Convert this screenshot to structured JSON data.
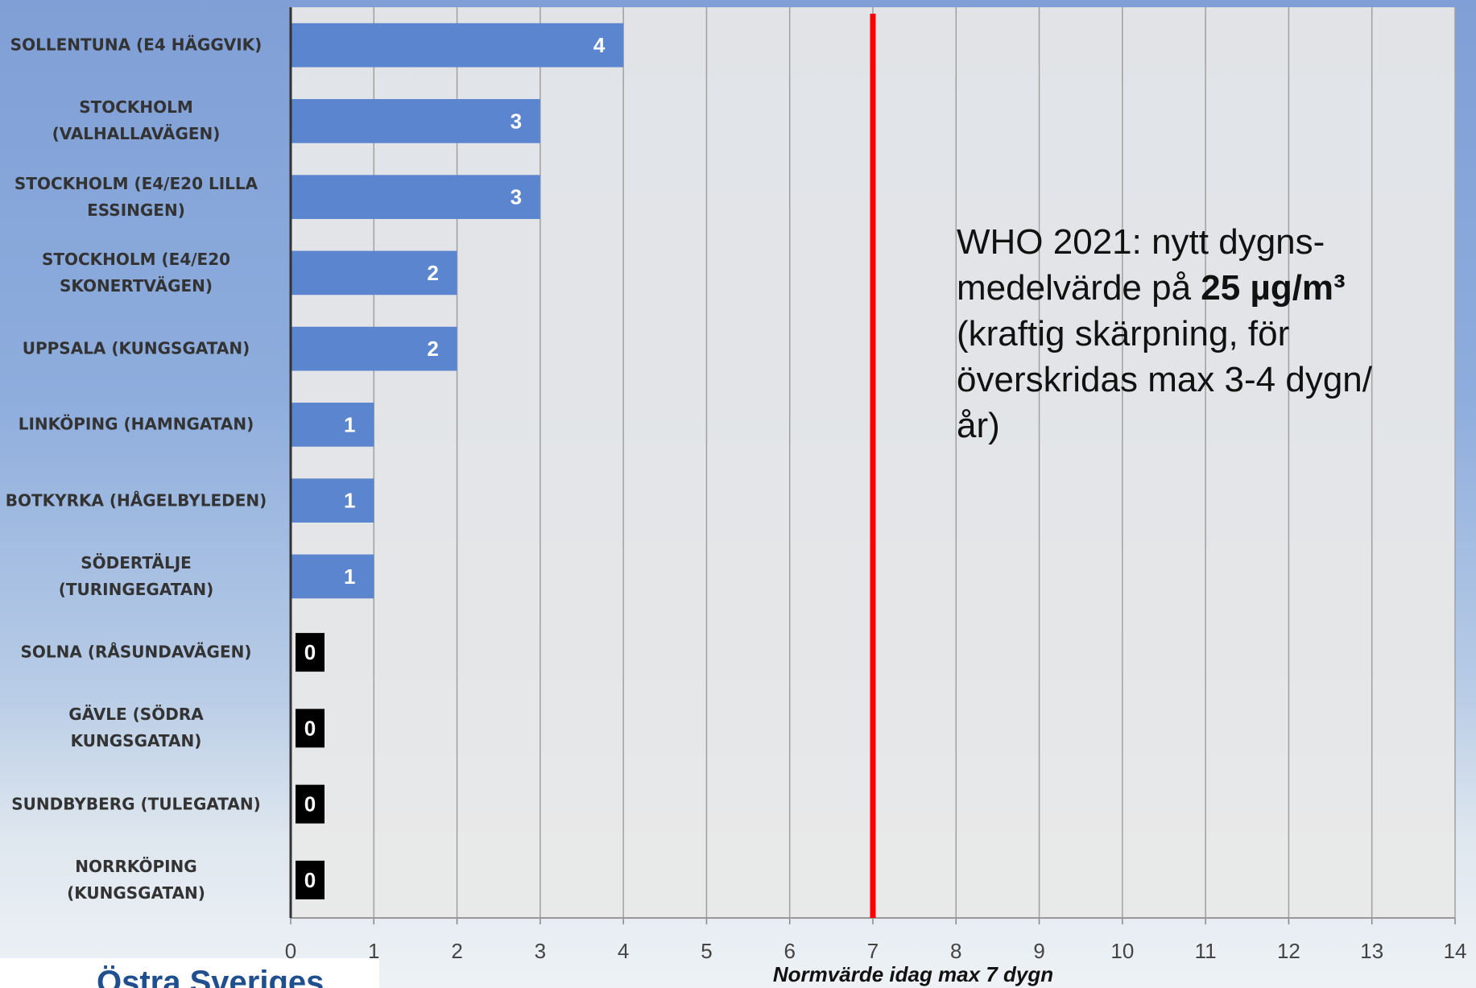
{
  "chart_data": {
    "type": "bar",
    "orientation": "horizontal",
    "categories": [
      "SOLLENTUNA (E4 HÄGGVIK)",
      "STOCKHOLM (VALHALLAVÄGEN)",
      "STOCKHOLM (E4/E20 LILLA ESSINGEN)",
      "STOCKHOLM (E4/E20 SKONERTVÄGEN)",
      "UPPSALA (KUNGSGATAN)",
      "LINKÖPING (HAMNGATAN)",
      "BOTKYRKA (HÅGELBYLEDEN)",
      "SÖDERTÄLJE (TURINGEGATAN)",
      "SOLNA (RÅSUNDAVÄGEN)",
      "GÄVLE (SÖDRA KUNGSGATAN)",
      "SUNDBYBERG (TULEGATAN)",
      "NORRKÖPING (KUNGSGATAN)"
    ],
    "values": [
      4,
      3,
      3,
      2,
      2,
      1,
      1,
      1,
      0,
      0,
      0,
      0
    ],
    "color": "#5b86cf",
    "xlim": [
      0,
      14
    ],
    "xticks": [
      0,
      1,
      2,
      3,
      4,
      5,
      6,
      7,
      8,
      9,
      10,
      11,
      12,
      13,
      14
    ],
    "grid": true,
    "xlabel": "Normvärde idag max 7 dygn",
    "reference_line": {
      "value": 7,
      "color": "#ff0000"
    },
    "annotation": [
      "WHO 2021: nytt dygns-medelvärde på ",
      "25 µg/m³",
      " (kraftig skärpning, för överskridas max 3-4 dygn/år)"
    ]
  },
  "logo_text": "Östra Sveriges"
}
